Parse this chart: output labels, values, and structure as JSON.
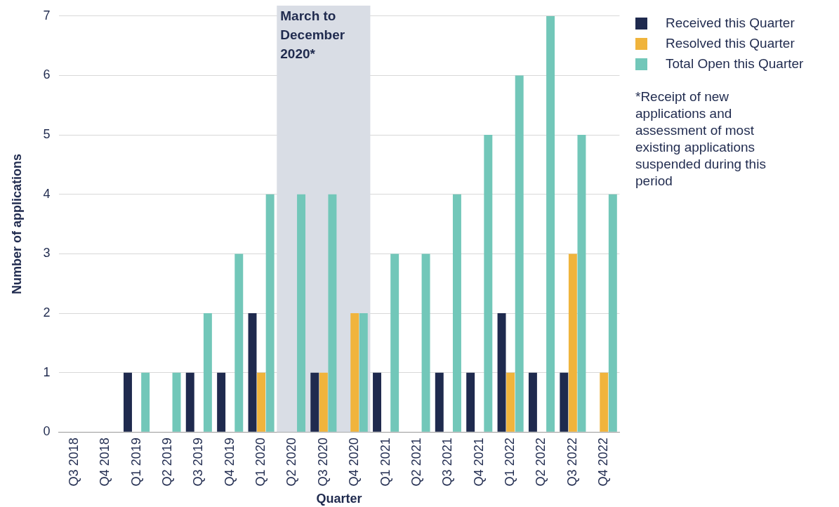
{
  "chart_data": {
    "type": "bar",
    "xlabel": "Quarter",
    "ylabel": "Number of applications",
    "categories": [
      "Q3 2018",
      "Q4 2018",
      "Q1 2019",
      "Q2 2019",
      "Q3 2019",
      "Q4 2019",
      "Q1 2020",
      "Q2 2020",
      "Q3 2020",
      "Q4 2020",
      "Q1 2021",
      "Q2 2021",
      "Q3 2021",
      "Q4 2021",
      "Q1 2022",
      "Q2 2022",
      "Q3 2022",
      "Q4 2022"
    ],
    "series": [
      {
        "name": "Received this Quarter",
        "color": "#1f2a4e",
        "values": [
          0,
          0,
          1,
          0,
          1,
          1,
          2,
          0,
          1,
          0,
          1,
          0,
          1,
          1,
          2,
          1,
          1,
          0
        ]
      },
      {
        "name": "Resolved this Quarter",
        "color": "#f0b43c",
        "values": [
          0,
          0,
          0,
          0,
          0,
          0,
          1,
          0,
          1,
          2,
          0,
          0,
          0,
          0,
          1,
          0,
          3,
          1
        ]
      },
      {
        "name": "Total Open this Quarter",
        "color": "#72c7b9",
        "values": [
          0,
          0,
          1,
          1,
          2,
          3,
          4,
          4,
          4,
          2,
          3,
          3,
          4,
          5,
          6,
          7,
          5,
          4
        ]
      }
    ],
    "ylim": [
      0,
      7
    ],
    "yticks": [
      0,
      1,
      2,
      3,
      4,
      5,
      6,
      7
    ],
    "grid": "y",
    "legend": "top right",
    "bands": [
      {
        "axis": "x",
        "from": "Q2 2020",
        "to": "Q4 2020",
        "label": "March to December 2020*",
        "color": "#d9dde5"
      }
    ],
    "annotations": [
      "*Receipt of new applications and assessment of most existing applications suspended during this period"
    ]
  }
}
